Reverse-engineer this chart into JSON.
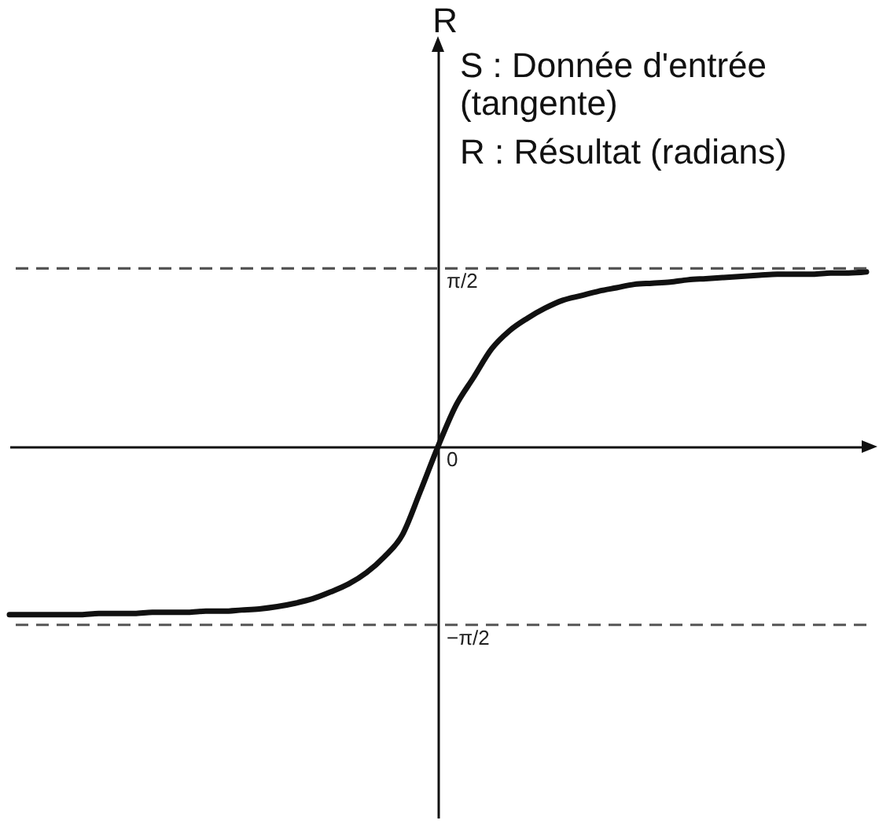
{
  "chart_data": {
    "type": "line",
    "ylabel": "R",
    "annotations": [
      "S : Donnée d'entrée\n(tangente)",
      "R : Résultat (radians)"
    ],
    "categories": [
      null,
      null,
      null,
      null,
      null,
      null,
      null,
      null,
      null,
      null,
      null,
      null,
      null,
      null,
      null,
      null,
      null,
      null,
      null,
      null,
      null,
      null,
      null,
      null,
      null,
      null,
      null,
      null,
      null,
      null,
      null,
      null,
      null,
      null,
      null,
      null,
      null,
      null,
      null,
      null,
      null,
      null,
      null,
      null,
      null,
      null,
      null,
      null,
      null
    ],
    "series": [
      {
        "color": "#111111",
        "values": [
          -1.48,
          -1.48,
          -1.48,
          -1.48,
          -1.48,
          -1.47,
          -1.47,
          -1.47,
          -1.46,
          -1.46,
          -1.46,
          -1.45,
          -1.45,
          -1.44,
          -1.43,
          -1.41,
          -1.38,
          -1.34,
          -1.28,
          -1.21,
          -1.11,
          -0.97,
          -0.78,
          -0.4,
          0,
          0.36,
          0.61,
          0.86,
          1.02,
          1.13,
          1.22,
          1.29,
          1.33,
          1.37,
          1.4,
          1.43,
          1.44,
          1.45,
          1.47,
          1.48,
          1.49,
          1.5,
          1.51,
          1.52,
          1.52,
          1.52,
          1.53,
          1.53,
          1.54
        ]
      }
    ],
    "ylim": [
      -3.27,
      3.52
    ],
    "yticks": [
      {
        "value": 1.5708,
        "label": "π/2"
      },
      0,
      {
        "value": -1.5708,
        "label": "−π/2"
      }
    ],
    "ref_lines": [
      {
        "axis": "y",
        "value": 1.5708,
        "line_style": "dashed",
        "color": "#555555"
      },
      {
        "axis": "y",
        "value": -1.5708,
        "line_style": "dashed",
        "color": "#555555"
      }
    ],
    "tick_labels": "y",
    "line_style": "solid"
  }
}
